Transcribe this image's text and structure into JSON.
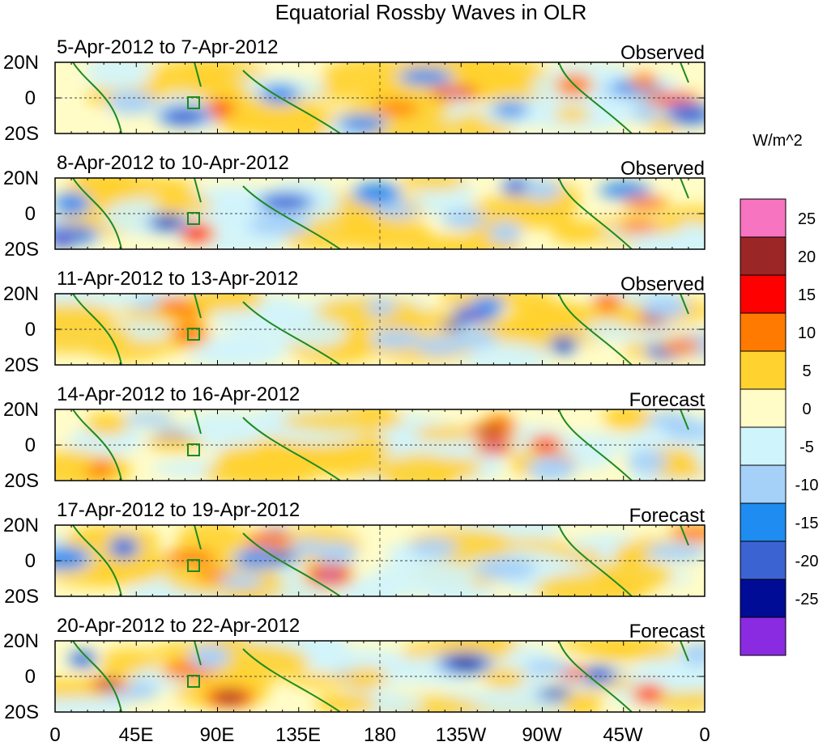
{
  "chart_data": {
    "type": "heatmap",
    "title": "Equatorial Rossby Waves in OLR",
    "units": "W/m^2",
    "x_ticks": [
      "0",
      "45E",
      "90E",
      "135E",
      "180",
      "135W",
      "90W",
      "45W",
      "0"
    ],
    "y_ticks": [
      "20N",
      "0",
      "20S"
    ],
    "panels": [
      {
        "dates": "5-Apr-2012 to 7-Apr-2012",
        "kind": "Observed"
      },
      {
        "dates": "8-Apr-2012 to 10-Apr-2012",
        "kind": "Observed"
      },
      {
        "dates": "11-Apr-2012 to 13-Apr-2012",
        "kind": "Observed"
      },
      {
        "dates": "14-Apr-2012 to 16-Apr-2012",
        "kind": "Forecast"
      },
      {
        "dates": "17-Apr-2012 to 19-Apr-2012",
        "kind": "Forecast"
      },
      {
        "dates": "20-Apr-2012 to 22-Apr-2012",
        "kind": "Forecast"
      }
    ],
    "colorbar": {
      "labels": [
        "25",
        "20",
        "15",
        "10",
        "5",
        "0",
        "-5",
        "-10",
        "-15",
        "-20",
        "-25"
      ],
      "colors": [
        "#f774c0",
        "#9b2626",
        "#ff0000",
        "#ff7a00",
        "#ffd22f",
        "#fffcc8",
        "#d0f4fc",
        "#a5d1f9",
        "#1e8cf0",
        "#3c63d2",
        "#000c96",
        "#8a2be2"
      ]
    }
  }
}
